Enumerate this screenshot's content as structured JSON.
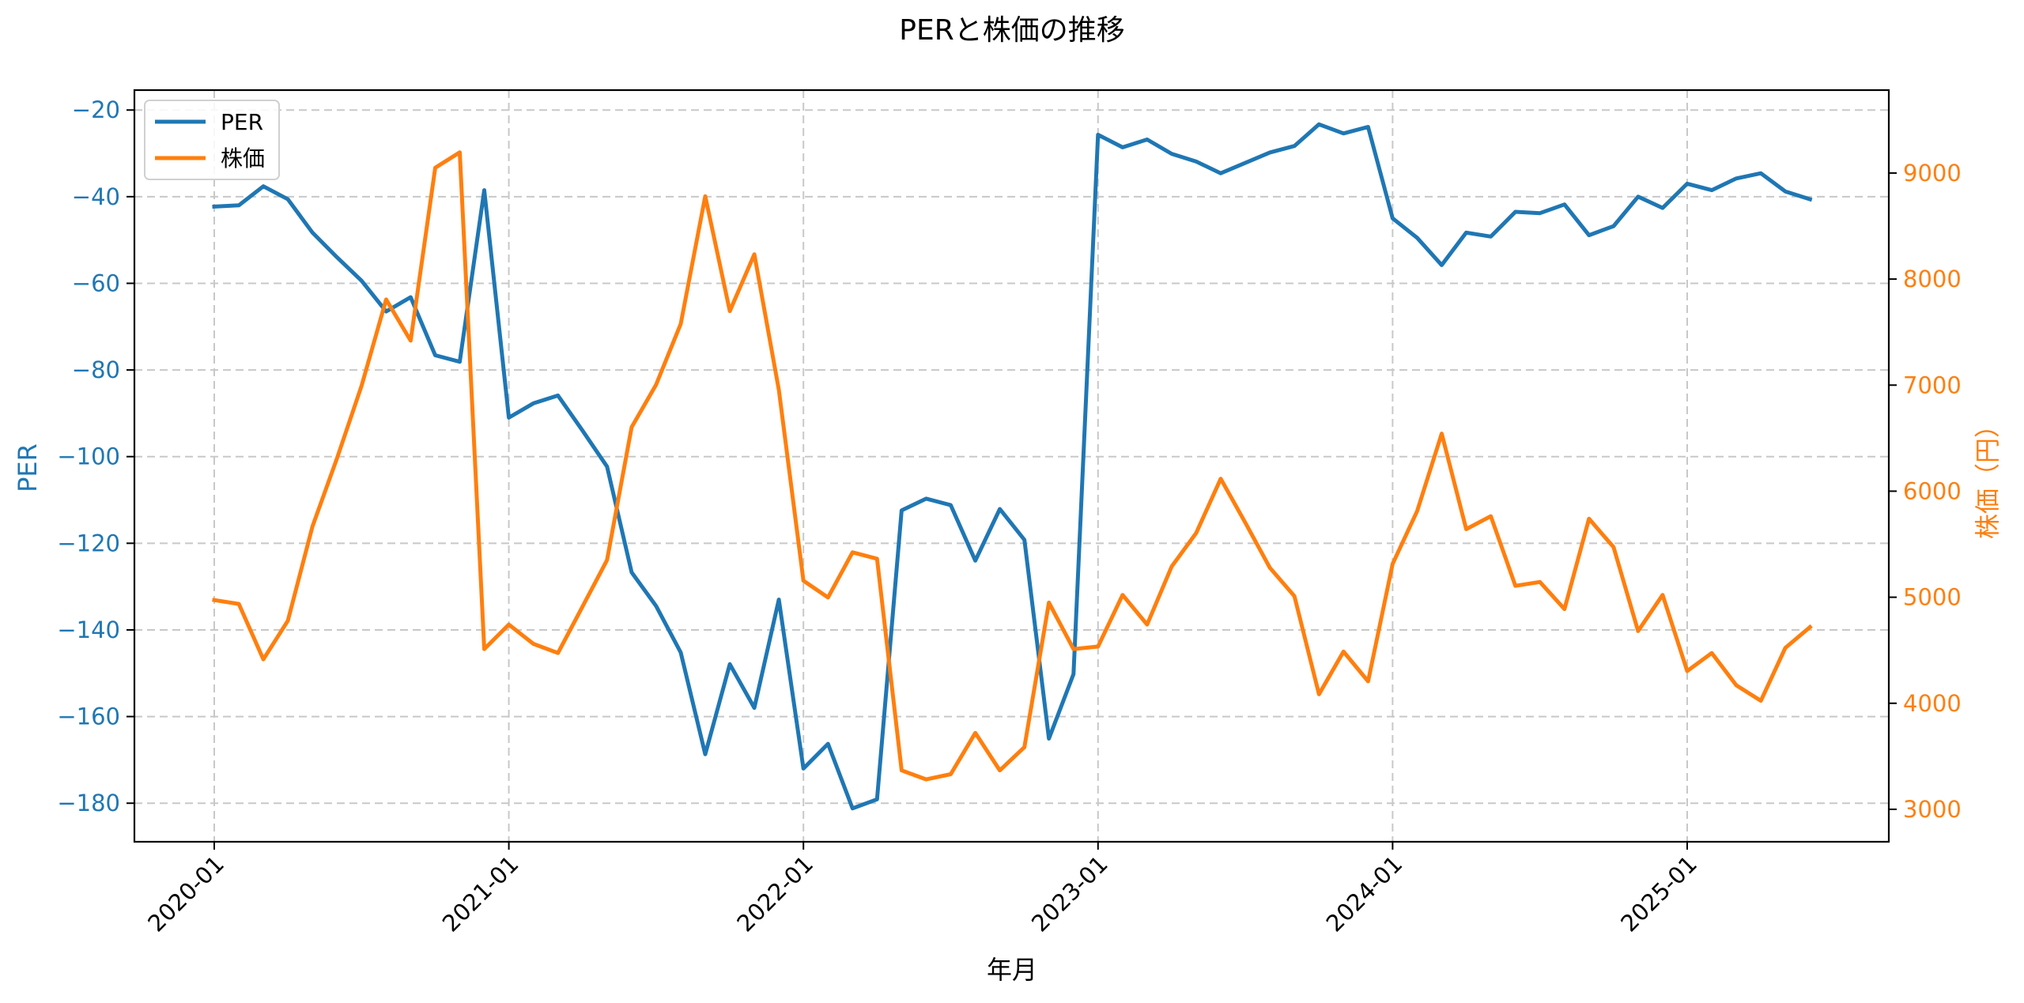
{
  "chart_data": {
    "type": "line",
    "title": "PERと株価の推移",
    "xlabel": "年月",
    "ylabel": "PER",
    "y2label": "株価（円）",
    "x_tick_labels": [
      "2020-01",
      "2021-01",
      "2022-01",
      "2023-01",
      "2024-01",
      "2025-01"
    ],
    "y_ticks": [
      -20,
      -40,
      -60,
      -80,
      -100,
      -120,
      -140,
      -160,
      -180
    ],
    "y2_ticks": [
      3000,
      4000,
      5000,
      6000,
      7000,
      8000,
      9000
    ],
    "ylim": [
      -188.9,
      -15.4
    ],
    "y2lim": [
      2694,
      9782
    ],
    "grid": true,
    "legend_position": "upper left",
    "x": [
      "2020-01",
      "2020-02",
      "2020-03",
      "2020-04",
      "2020-05",
      "2020-06",
      "2020-07",
      "2020-08",
      "2020-09",
      "2020-10",
      "2020-11",
      "2020-12",
      "2021-01",
      "2021-02",
      "2021-03",
      "2021-04",
      "2021-05",
      "2021-06",
      "2021-07",
      "2021-08",
      "2021-09",
      "2021-10",
      "2021-11",
      "2021-12",
      "2022-01",
      "2022-02",
      "2022-03",
      "2022-04",
      "2022-05",
      "2022-06",
      "2022-07",
      "2022-08",
      "2022-09",
      "2022-10",
      "2022-11",
      "2022-12",
      "2023-01",
      "2023-02",
      "2023-03",
      "2023-04",
      "2023-05",
      "2023-06",
      "2023-07",
      "2023-08",
      "2023-09",
      "2023-10",
      "2023-11",
      "2023-12",
      "2024-01",
      "2024-02",
      "2024-03",
      "2024-04",
      "2024-05",
      "2024-06",
      "2024-07",
      "2024-08",
      "2024-09",
      "2024-10",
      "2024-11",
      "2024-12",
      "2025-01",
      "2025-02",
      "2025-03",
      "2025-04",
      "2025-05",
      "2025-06"
    ],
    "series": [
      {
        "name": "PER",
        "axis": "left",
        "color": "#1f77b4",
        "values": [
          -42.3,
          -42.0,
          -37.6,
          -40.6,
          -48.3,
          -54.0,
          -59.4,
          -66.5,
          -63.2,
          -76.6,
          -78.1,
          -38.5,
          -91.0,
          -87.7,
          -85.9,
          -94.0,
          -102.3,
          -126.7,
          -134.5,
          -145.2,
          -168.7,
          -147.9,
          -158.0,
          -133.0,
          -172.0,
          -166.3,
          -181.2,
          -179.1,
          -112.4,
          -109.7,
          -111.2,
          -124.0,
          -112.1,
          -119.2,
          -165.1,
          -150.2,
          -25.7,
          -28.6,
          -26.8,
          -30.1,
          -31.9,
          -34.6,
          -32.2,
          -29.8,
          -28.3,
          -23.3,
          -25.4,
          -23.9,
          -45.0,
          -49.5,
          -55.8,
          -48.3,
          -49.2,
          -43.5,
          -43.8,
          -41.8,
          -48.9,
          -46.8,
          -40.0,
          -42.6,
          -37.0,
          -38.5,
          -35.8,
          -34.6,
          -38.8,
          -40.6
        ]
      },
      {
        "name": "株価",
        "axis": "right",
        "color": "#ff7f0e",
        "values": [
          4973,
          4937,
          4414,
          4779,
          5667,
          6311,
          6993,
          7808,
          7419,
          9049,
          9195,
          4511,
          4742,
          4560,
          4474,
          4912,
          5350,
          6603,
          7005,
          7577,
          8781,
          7698,
          8234,
          6956,
          5156,
          4998,
          5423,
          5363,
          3367,
          3282,
          3331,
          3720,
          3367,
          3586,
          4949,
          4511,
          4535,
          5022,
          4742,
          5290,
          5606,
          6117,
          5703,
          5277,
          5010,
          4085,
          4487,
          4207,
          5314,
          5813,
          6543,
          5642,
          5764,
          5107,
          5144,
          4888,
          5740,
          5472,
          4681,
          5022,
          4304,
          4474,
          4170,
          4024,
          4523,
          4718
        ]
      }
    ]
  },
  "colors": {
    "per": "#1f77b4",
    "price": "#ff7f0e",
    "grid": "#c8c8c8",
    "axis": "#000000"
  },
  "legend": {
    "items": [
      {
        "label": "PER",
        "color": "#1f77b4"
      },
      {
        "label": "株価",
        "color": "#ff7f0e"
      }
    ]
  }
}
